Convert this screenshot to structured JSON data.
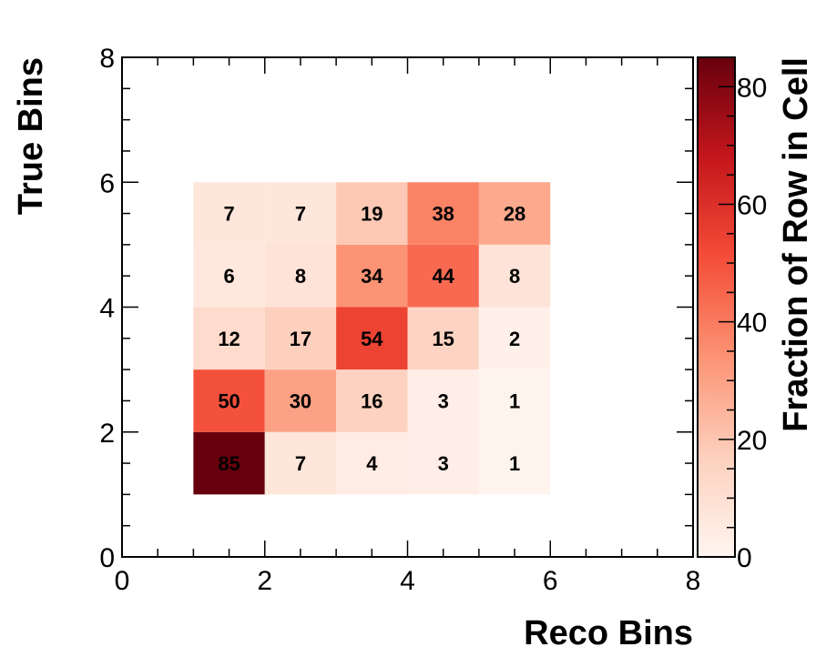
{
  "chart_data": {
    "type": "heatmap",
    "title": "",
    "xlabel": "Reco Bins",
    "ylabel": "True Bins",
    "colorbar_label": "Fraction of Row in Cell",
    "xlim": [
      0,
      8
    ],
    "ylim": [
      0,
      8
    ],
    "x_ticks": [
      "0",
      "2",
      "4",
      "6",
      "8"
    ],
    "y_ticks": [
      "0",
      "2",
      "4",
      "6",
      "8"
    ],
    "colorbar_range": [
      0,
      85
    ],
    "colorbar_ticks": [
      "0",
      "20",
      "40",
      "60",
      "80"
    ],
    "colormap": [
      "#fff5f0",
      "#fdd0bd",
      "#fc9374",
      "#f44d38",
      "#c4161c",
      "#67000d"
    ],
    "x_bins": [
      [
        1,
        2
      ],
      [
        2,
        3
      ],
      [
        3,
        4
      ],
      [
        4,
        5
      ],
      [
        5,
        6
      ]
    ],
    "y_bins": [
      [
        1,
        2
      ],
      [
        2,
        3
      ],
      [
        3,
        4
      ],
      [
        4,
        5
      ],
      [
        5,
        6
      ]
    ],
    "cells": [
      [
        85,
        7,
        4,
        3,
        1
      ],
      [
        50,
        30,
        16,
        3,
        1
      ],
      [
        12,
        17,
        54,
        15,
        2
      ],
      [
        6,
        8,
        34,
        44,
        8
      ],
      [
        7,
        7,
        19,
        38,
        28
      ]
    ],
    "cell_labels": [
      [
        "85",
        "7",
        "4",
        "3",
        "1"
      ],
      [
        "50",
        "30",
        "16",
        "3",
        "1"
      ],
      [
        "12",
        "17",
        "54",
        "15",
        "2"
      ],
      [
        "6",
        "8",
        "34",
        "44",
        "8"
      ],
      [
        "7",
        "7",
        "19",
        "38",
        "28"
      ]
    ],
    "grid": false,
    "legend": "colorbar-right"
  }
}
